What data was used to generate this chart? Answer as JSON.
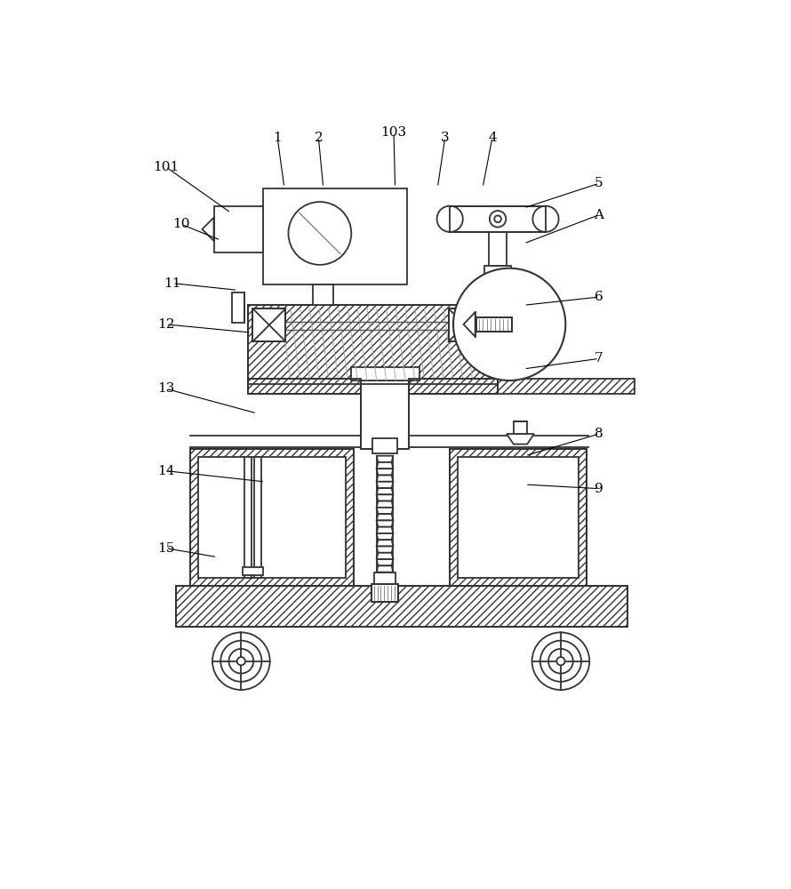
{
  "bg_color": "#ffffff",
  "line_color": "#333333",
  "lw": 1.3,
  "fig_w": 8.9,
  "fig_h": 10.0,
  "dpi": 100
}
